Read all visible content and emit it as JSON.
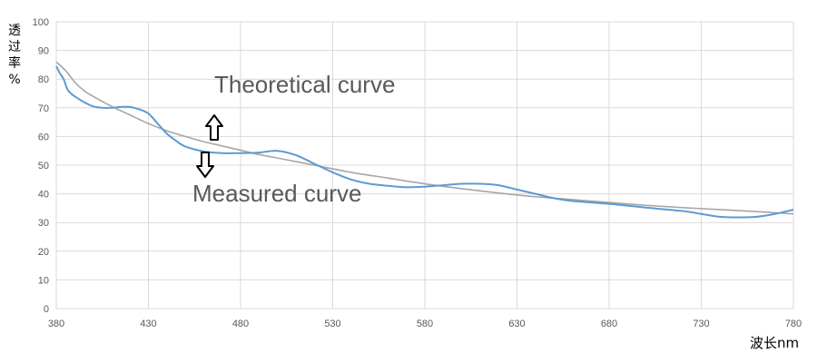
{
  "chart_data": {
    "type": "line",
    "xlabel": "波长nm",
    "ylabel_chars": [
      "透",
      "过",
      "率",
      "%"
    ],
    "xlim": [
      380,
      780
    ],
    "ylim": [
      0,
      100
    ],
    "x_ticks": [
      380,
      430,
      480,
      530,
      580,
      630,
      680,
      730,
      780
    ],
    "y_ticks": [
      0,
      10,
      20,
      30,
      40,
      50,
      60,
      70,
      80,
      90,
      100
    ],
    "grid": true,
    "series": [
      {
        "key": "theoretical",
        "color": "#a6a6a6",
        "x": [
          380,
          385,
          390,
          395,
          400,
          410,
          420,
          430,
          440,
          450,
          460,
          470,
          480,
          490,
          500,
          520,
          540,
          560,
          580,
          600,
          620,
          640,
          660,
          680,
          700,
          720,
          740,
          760,
          780
        ],
        "y": [
          86,
          83,
          79,
          76,
          74,
          70.5,
          67.5,
          64.5,
          62,
          60,
          58.2,
          56.7,
          55.2,
          53.7,
          52.5,
          50,
          47.5,
          45.5,
          43.5,
          41.8,
          40.3,
          39,
          38,
          37,
          36,
          35.2,
          34.5,
          33.8,
          33
        ]
      },
      {
        "key": "measured",
        "color": "#5b9bd5",
        "x": [
          380,
          382,
          384,
          386,
          388,
          390,
          395,
          400,
          405,
          410,
          415,
          420,
          425,
          430,
          435,
          440,
          445,
          450,
          460,
          470,
          480,
          490,
          500,
          510,
          520,
          530,
          540,
          550,
          560,
          570,
          580,
          590,
          600,
          610,
          620,
          630,
          640,
          650,
          660,
          680,
          700,
          720,
          730,
          740,
          750,
          760,
          770,
          780
        ],
        "y": [
          84.5,
          82,
          80,
          76.5,
          75,
          74,
          72,
          70.5,
          70,
          70,
          70.3,
          70.3,
          69.5,
          68,
          64.5,
          61,
          58.5,
          56.5,
          54.8,
          54.2,
          54.2,
          54.4,
          55,
          53.5,
          50.5,
          47.5,
          45,
          43.5,
          42.8,
          42.3,
          42.5,
          43,
          43.5,
          43.5,
          43,
          41.5,
          40,
          38.5,
          37.5,
          36.5,
          35.2,
          34,
          33,
          32,
          31.8,
          32,
          33,
          34.5
        ]
      }
    ],
    "annotations": {
      "theoretical_label": "Theoretical curve",
      "measured_label": "Measured curve"
    }
  }
}
